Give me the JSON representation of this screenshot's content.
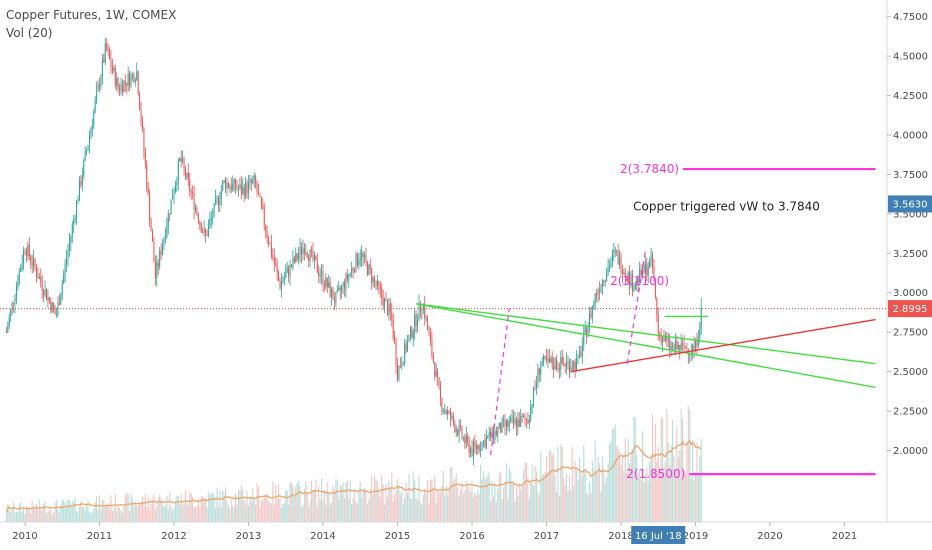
{
  "legend": {
    "symbol": "Copper Futures, 1W, COMEX",
    "indicator": "Vol (20)"
  },
  "colors": {
    "up": "#26a69a",
    "down": "#ef5350",
    "magenta": "#ff33dd",
    "green_line": "#44dd44",
    "red_line": "#ee3333",
    "last_price_bg": "#ef5350",
    "mark_price_bg": "#3f7fb6",
    "time_marker_bg": "#3f7fb6",
    "vol_ma": "#f0a060",
    "axis_text": "#4a4a4a",
    "dotted": "#d24b4b"
  },
  "chart_data": {
    "type": "candlestick",
    "symbol": "Copper Futures, 1W, COMEX",
    "y_axis": {
      "ticks": [
        "4.7500",
        "4.5000",
        "4.2500",
        "4.0000",
        "3.7500",
        "3.5000",
        "3.2500",
        "3.0000",
        "2.7500",
        "2.5000",
        "2.2500",
        "2.0000"
      ],
      "range": [
        1.8,
        4.78
      ]
    },
    "x_axis": {
      "ticks": [
        "2010",
        "2011",
        "2012",
        "2013",
        "2014",
        "2015",
        "2016",
        "2017",
        "2018",
        "2019",
        "2020",
        "2021"
      ]
    },
    "price_path": [
      [
        "2009-10",
        2.75
      ],
      [
        "2010-01",
        3.3
      ],
      [
        "2010-06",
        2.85
      ],
      [
        "2010-09",
        3.5
      ],
      [
        "2011-02",
        4.55
      ],
      [
        "2011-04",
        4.3
      ],
      [
        "2011-07",
        4.4
      ],
      [
        "2011-10",
        3.1
      ],
      [
        "2012-02",
        3.85
      ],
      [
        "2012-06",
        3.35
      ],
      [
        "2012-09",
        3.7
      ],
      [
        "2012-12",
        3.65
      ],
      [
        "2013-02",
        3.7
      ],
      [
        "2013-06",
        3.05
      ],
      [
        "2013-10",
        3.3
      ],
      [
        "2014-03",
        2.95
      ],
      [
        "2014-07",
        3.25
      ],
      [
        "2014-12",
        2.85
      ],
      [
        "2015-01",
        2.5
      ],
      [
        "2015-05",
        2.95
      ],
      [
        "2015-08",
        2.3
      ],
      [
        "2015-12",
        2.05
      ],
      [
        "2016-01",
        2.0
      ],
      [
        "2016-06",
        2.15
      ],
      [
        "2016-10",
        2.2
      ],
      [
        "2016-12",
        2.55
      ],
      [
        "2017-06",
        2.55
      ],
      [
        "2017-09",
        3.0
      ],
      [
        "2017-12",
        3.25
      ],
      [
        "2018-03",
        3.05
      ],
      [
        "2018-06",
        3.2
      ],
      [
        "2018-07",
        2.75
      ],
      [
        "2018-09",
        2.65
      ],
      [
        "2019-01",
        2.65
      ],
      [
        "2019-02",
        2.9
      ]
    ],
    "last_price": "2.8995",
    "marked_price": "3.5630",
    "levels": [
      {
        "label": "2(3.7840)",
        "value": 3.784,
        "from": "2018-11",
        "to": "2021-06"
      },
      {
        "label": "2(1.8500)",
        "value": 1.85,
        "from": "2018-12",
        "to": "2021-06"
      }
    ],
    "annotations": [
      {
        "text": "Copper triggered vW to 3.7840",
        "date": "2019-06",
        "value": 3.52
      },
      {
        "text": "2(3.1100)",
        "date": "2018-04",
        "value": 3.05
      }
    ],
    "trendlines": [
      {
        "name": "green-upper",
        "color": "green",
        "p1": [
          "2015-04",
          2.93
        ],
        "p2": [
          "2021-06",
          2.55
        ]
      },
      {
        "name": "green-lower",
        "color": "green",
        "p1": [
          "2015-04",
          2.93
        ],
        "p2": [
          "2021-06",
          2.4
        ]
      },
      {
        "name": "red-support",
        "color": "red",
        "p1": [
          "2017-05",
          2.5
        ],
        "p2": [
          "2021-06",
          2.83
        ]
      },
      {
        "name": "green-short",
        "color": "green",
        "p1": [
          "2018-08",
          2.85
        ],
        "p2": [
          "2019-03",
          2.85
        ]
      }
    ],
    "dashed_lines": [
      {
        "p1": [
          "2016-04",
          1.97
        ],
        "p2": [
          "2016-07",
          2.9
        ]
      },
      {
        "p1": [
          "2018-02",
          2.55
        ],
        "p2": [
          "2018-05",
          3.28
        ]
      }
    ],
    "time_marker": "16 Jul '18",
    "time_marker_date": "2018-07"
  }
}
